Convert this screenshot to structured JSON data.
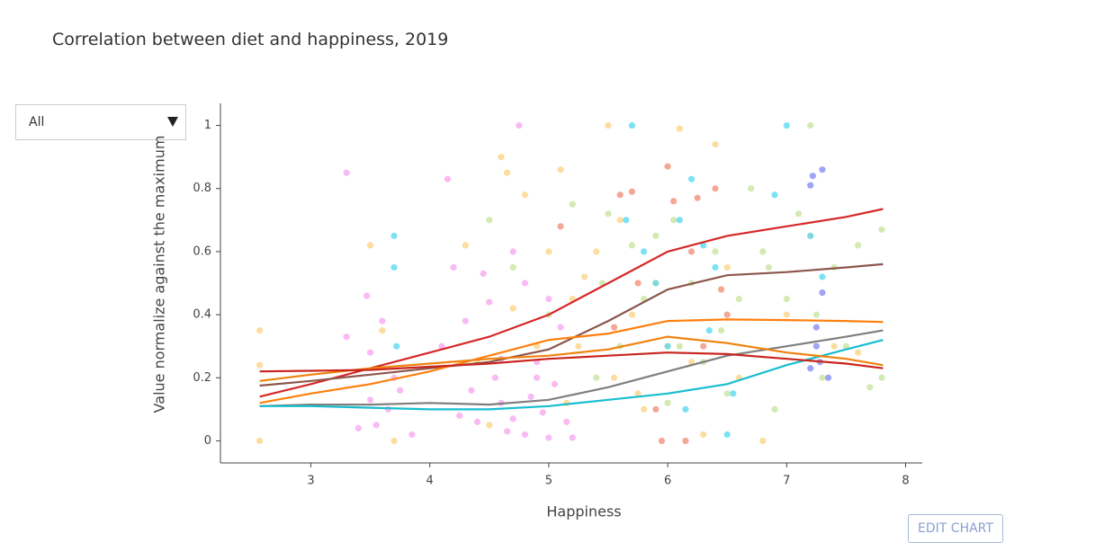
{
  "chart_data": {
    "type": "scatter",
    "title": "Correlation between diet and happiness, 2019",
    "xlabel": "Happiness",
    "ylabel": "Value normalize against the maximum",
    "xlim": [
      2.24,
      8.14
    ],
    "ylim": [
      -0.07,
      1.07
    ],
    "xticks": [
      3,
      4,
      5,
      6,
      7,
      8
    ],
    "yticks": [
      0,
      0.2,
      0.4,
      0.6,
      0.8,
      1
    ],
    "series": [
      {
        "mode": "markers",
        "color": "#f7a3f0",
        "x": [
          3.3,
          3.3,
          3.47,
          3.5,
          3.5,
          3.55,
          3.6,
          3.7,
          3.85,
          4.15,
          4.2,
          4.3,
          4.35,
          4.4,
          4.5,
          4.55,
          4.6,
          4.65,
          4.7,
          4.75,
          4.8,
          4.85,
          4.9,
          4.95,
          5.0,
          5.05,
          5.1,
          5.15,
          5.2,
          3.4,
          3.65,
          4.1,
          4.45,
          4.7,
          4.9,
          5.0,
          4.25,
          3.75,
          4.6,
          4.8
        ],
        "values": [
          0.85,
          0.33,
          0.46,
          0.28,
          0.13,
          0.05,
          0.38,
          0.2,
          0.02,
          0.83,
          0.55,
          0.38,
          0.16,
          0.06,
          0.44,
          0.2,
          0.12,
          0.03,
          0.6,
          1.0,
          0.02,
          0.14,
          0.25,
          0.09,
          0.01,
          0.18,
          0.36,
          0.06,
          0.01,
          0.04,
          0.1,
          0.3,
          0.53,
          0.07,
          0.2,
          0.45,
          0.08,
          0.16,
          0.26,
          0.5
        ]
      },
      {
        "mode": "markers",
        "color": "#fcd27f",
        "x": [
          2.57,
          2.57,
          2.57,
          3.5,
          3.6,
          3.7,
          4.3,
          4.4,
          4.6,
          4.65,
          4.7,
          4.8,
          4.9,
          5.0,
          5.1,
          5.15,
          5.2,
          5.3,
          5.4,
          5.5,
          5.55,
          5.6,
          5.7,
          5.8,
          5.9,
          6.0,
          6.1,
          6.2,
          6.4,
          6.5,
          6.6,
          6.8,
          7.0,
          7.2,
          7.4,
          7.6,
          4.5,
          5.25,
          5.75,
          6.3
        ],
        "values": [
          0.35,
          0.24,
          0.0,
          0.62,
          0.35,
          0.0,
          0.62,
          0.25,
          0.9,
          0.85,
          0.42,
          0.78,
          0.3,
          0.6,
          0.86,
          0.12,
          0.45,
          0.52,
          0.6,
          1.0,
          0.2,
          0.7,
          0.4,
          0.1,
          0.5,
          0.3,
          0.99,
          0.25,
          0.94,
          0.55,
          0.2,
          0.0,
          0.4,
          0.65,
          0.3,
          0.28,
          0.05,
          0.3,
          0.15,
          0.02
        ]
      },
      {
        "mode": "markers",
        "color": "#c4e39a",
        "x": [
          4.5,
          4.7,
          5.0,
          5.2,
          5.4,
          5.5,
          5.6,
          5.7,
          5.8,
          5.9,
          6.0,
          6.1,
          6.2,
          6.3,
          6.4,
          6.5,
          6.6,
          6.7,
          6.8,
          6.9,
          7.0,
          7.1,
          7.2,
          7.3,
          7.4,
          7.5,
          7.6,
          7.7,
          7.8,
          7.8,
          6.05,
          6.45,
          6.85,
          7.25,
          5.45
        ],
        "values": [
          0.7,
          0.55,
          0.4,
          0.75,
          0.2,
          0.72,
          0.3,
          0.62,
          0.45,
          0.65,
          0.12,
          0.3,
          0.5,
          0.25,
          0.6,
          0.15,
          0.45,
          0.8,
          0.6,
          0.1,
          0.45,
          0.72,
          1.0,
          0.2,
          0.55,
          0.3,
          0.62,
          0.17,
          0.67,
          0.2,
          0.7,
          0.35,
          0.55,
          0.4,
          0.5
        ]
      },
      {
        "mode": "markers",
        "color": "#4fd8f0",
        "x": [
          3.7,
          3.7,
          3.72,
          5.65,
          5.7,
          5.9,
          6.0,
          6.1,
          6.2,
          6.3,
          6.4,
          6.5,
          6.9,
          7.0,
          7.2,
          7.3,
          6.15,
          6.35,
          5.8,
          6.55
        ],
        "values": [
          0.65,
          0.55,
          0.3,
          0.7,
          1.0,
          0.5,
          0.3,
          0.7,
          0.83,
          0.62,
          0.55,
          0.02,
          0.78,
          1.0,
          0.65,
          0.52,
          0.1,
          0.35,
          0.6,
          0.15
        ]
      },
      {
        "mode": "markers",
        "color": "#f08a70",
        "x": [
          5.1,
          5.55,
          5.6,
          5.7,
          5.75,
          5.9,
          6.0,
          6.05,
          6.15,
          6.2,
          6.25,
          6.4,
          6.45,
          6.5,
          5.95,
          6.3
        ],
        "values": [
          0.68,
          0.36,
          0.78,
          0.79,
          0.5,
          0.1,
          0.87,
          0.76,
          0.0,
          0.6,
          0.77,
          0.8,
          0.48,
          0.4,
          0.0,
          0.3
        ]
      },
      {
        "mode": "markers",
        "color": "#7f86f0",
        "x": [
          7.2,
          7.22,
          7.25,
          7.28,
          7.3,
          7.3,
          7.2,
          7.25,
          7.35
        ],
        "values": [
          0.81,
          0.84,
          0.36,
          0.25,
          0.86,
          0.47,
          0.23,
          0.3,
          0.2
        ]
      },
      {
        "mode": "lines",
        "color": "#d62728",
        "x": [
          2.57,
          3,
          3.5,
          4,
          4.5,
          5,
          5.5,
          6,
          6.5,
          7,
          7.5,
          7.81
        ],
        "values": [
          0.14,
          0.18,
          0.23,
          0.28,
          0.33,
          0.4,
          0.5,
          0.6,
          0.65,
          0.68,
          0.71,
          0.735
        ]
      },
      {
        "mode": "lines",
        "color": "#8c564b",
        "x": [
          2.57,
          3,
          3.5,
          4,
          4.5,
          5,
          5.5,
          6,
          6.5,
          7,
          7.5,
          7.81
        ],
        "values": [
          0.175,
          0.19,
          0.21,
          0.23,
          0.25,
          0.29,
          0.38,
          0.48,
          0.525,
          0.535,
          0.55,
          0.56
        ]
      },
      {
        "mode": "lines",
        "color": "#ff7f0e",
        "x": [
          2.57,
          3,
          3.5,
          4,
          4.5,
          5,
          5.5,
          6,
          6.5,
          7,
          7.5,
          7.81
        ],
        "values": [
          0.12,
          0.15,
          0.18,
          0.22,
          0.27,
          0.32,
          0.34,
          0.38,
          0.385,
          0.383,
          0.38,
          0.377
        ]
      },
      {
        "mode": "lines",
        "color": "#7f7f7f",
        "x": [
          2.57,
          3,
          3.5,
          4,
          4.5,
          5,
          5.5,
          6,
          6.5,
          7,
          7.5,
          7.81
        ],
        "values": [
          0.11,
          0.115,
          0.115,
          0.12,
          0.115,
          0.13,
          0.17,
          0.22,
          0.27,
          0.3,
          0.33,
          0.35
        ]
      },
      {
        "mode": "lines",
        "color": "#17becf",
        "x": [
          2.57,
          3,
          3.5,
          4,
          4.5,
          5,
          5.5,
          6,
          6.5,
          7,
          7.5,
          7.81
        ],
        "values": [
          0.11,
          0.11,
          0.105,
          0.1,
          0.1,
          0.11,
          0.13,
          0.15,
          0.18,
          0.24,
          0.29,
          0.32
        ]
      },
      {
        "mode": "lines",
        "color": "#f0820e",
        "x": [
          2.57,
          3,
          3.5,
          4,
          4.5,
          5,
          5.5,
          6,
          6.5,
          7,
          7.5,
          7.81
        ],
        "values": [
          0.19,
          0.21,
          0.23,
          0.245,
          0.26,
          0.27,
          0.29,
          0.33,
          0.31,
          0.28,
          0.26,
          0.24
        ]
      },
      {
        "mode": "lines",
        "color": "#c9251f",
        "x": [
          2.57,
          3,
          3.5,
          4,
          4.5,
          5,
          5.5,
          6,
          6.5,
          7,
          7.5,
          7.81
        ],
        "values": [
          0.22,
          0.222,
          0.225,
          0.235,
          0.245,
          0.26,
          0.27,
          0.28,
          0.275,
          0.26,
          0.245,
          0.23
        ]
      }
    ]
  },
  "dropdown": {
    "selected": "All"
  },
  "button": {
    "label": "EDIT CHART"
  }
}
